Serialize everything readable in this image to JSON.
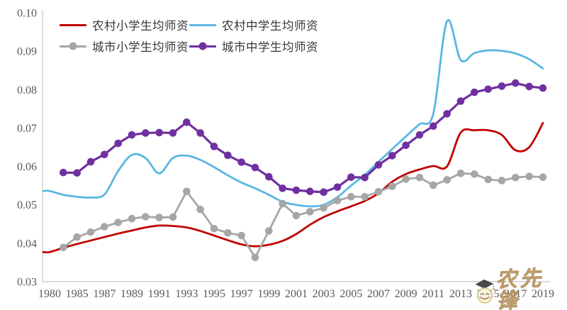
{
  "chart_data": {
    "type": "line",
    "title": "",
    "xlabel": "",
    "ylabel": "",
    "ylim": [
      0.03,
      0.1
    ],
    "grid": false,
    "legend_position": "top-left",
    "y_ticks": [
      "0.03",
      "0.04",
      "0.05",
      "0.06",
      "0.07",
      "0.08",
      "0.09",
      "0.10"
    ],
    "x_tick_labels": [
      "1980",
      "1985",
      "1987",
      "1989",
      "1991",
      "1993",
      "1995",
      "1997",
      "1999",
      "2001",
      "2003",
      "2005",
      "2007",
      "2009",
      "2011",
      "2013",
      "2015",
      "2017",
      "2019"
    ],
    "categories": [
      "1980",
      "1983",
      "1985",
      "1986",
      "1987",
      "1988",
      "1989",
      "1990",
      "1991",
      "1992",
      "1993",
      "1994",
      "1995",
      "1996",
      "1997",
      "1998",
      "1999",
      "2000",
      "2001",
      "2002",
      "2003",
      "2004",
      "2005",
      "2006",
      "2007",
      "2008",
      "2009",
      "2010",
      "2011",
      "2012",
      "2013",
      "2014",
      "2015",
      "2016",
      "2017",
      "2018",
      "2019"
    ],
    "series": [
      {
        "id": "rural-primary",
        "name": "农村小学生均师资",
        "color": "#c00000",
        "marker": false,
        "smooth": true,
        "values": [
          0.0377,
          0.0388,
          0.0398,
          0.0407,
          0.0416,
          0.0425,
          0.0433,
          0.0441,
          0.0446,
          0.0445,
          0.0441,
          0.0432,
          0.042,
          0.0408,
          0.0397,
          0.0392,
          0.0396,
          0.0406,
          0.0424,
          0.0448,
          0.0468,
          0.0483,
          0.0496,
          0.051,
          0.053,
          0.056,
          0.058,
          0.0592,
          0.0601,
          0.06,
          0.0688,
          0.0694,
          0.0694,
          0.0682,
          0.0642,
          0.065,
          0.0713
        ]
      },
      {
        "id": "rural-middle",
        "name": "农村中学生均师资",
        "color": "#5ab7e2",
        "marker": false,
        "smooth": true,
        "values": [
          0.0536,
          0.0526,
          0.0521,
          0.0519,
          0.0527,
          0.0588,
          0.063,
          0.0622,
          0.0582,
          0.0622,
          0.0628,
          0.0617,
          0.0598,
          0.0577,
          0.0558,
          0.0543,
          0.0526,
          0.0508,
          0.05,
          0.0496,
          0.05,
          0.052,
          0.055,
          0.0578,
          0.0612,
          0.0645,
          0.0678,
          0.071,
          0.0737,
          0.0978,
          0.0877,
          0.0895,
          0.0902,
          0.0901,
          0.0894,
          0.0879,
          0.0855
        ]
      },
      {
        "id": "urban-primary",
        "name": "城市小学生均师资",
        "color": "#a6a6a6",
        "marker": true,
        "smooth": false,
        "values": [
          null,
          0.0389,
          0.0416,
          0.0429,
          0.0443,
          0.0454,
          0.0464,
          0.0469,
          0.0467,
          0.0468,
          0.0535,
          0.0488,
          0.0438,
          0.0427,
          0.042,
          0.0363,
          0.0432,
          0.0503,
          0.0472,
          0.0482,
          0.0492,
          0.0511,
          0.0521,
          0.0521,
          0.0534,
          0.0548,
          0.0567,
          0.0571,
          0.0551,
          0.0565,
          0.0582,
          0.058,
          0.0566,
          0.0563,
          0.0571,
          0.0574,
          0.0572
        ]
      },
      {
        "id": "urban-middle",
        "name": "城市中学生均师资",
        "color": "#7030a0",
        "marker": true,
        "smooth": false,
        "values": [
          null,
          0.0584,
          0.0583,
          0.0612,
          0.0631,
          0.066,
          0.0682,
          0.0687,
          0.0688,
          0.0687,
          0.0715,
          0.0687,
          0.0652,
          0.0629,
          0.0611,
          0.0597,
          0.0573,
          0.0543,
          0.0538,
          0.0535,
          0.0533,
          0.0546,
          0.0572,
          0.0571,
          0.0604,
          0.0628,
          0.0655,
          0.0682,
          0.0705,
          0.0737,
          0.077,
          0.0793,
          0.0801,
          0.0809,
          0.0817,
          0.0808,
          0.0804
        ]
      }
    ]
  },
  "watermark": {
    "text": "农先锋"
  },
  "colors": {
    "axis_line": "#c3c3c3",
    "tick_text": "#595959",
    "legend_text": "#383838",
    "watermark_gold": "#b9935c"
  }
}
